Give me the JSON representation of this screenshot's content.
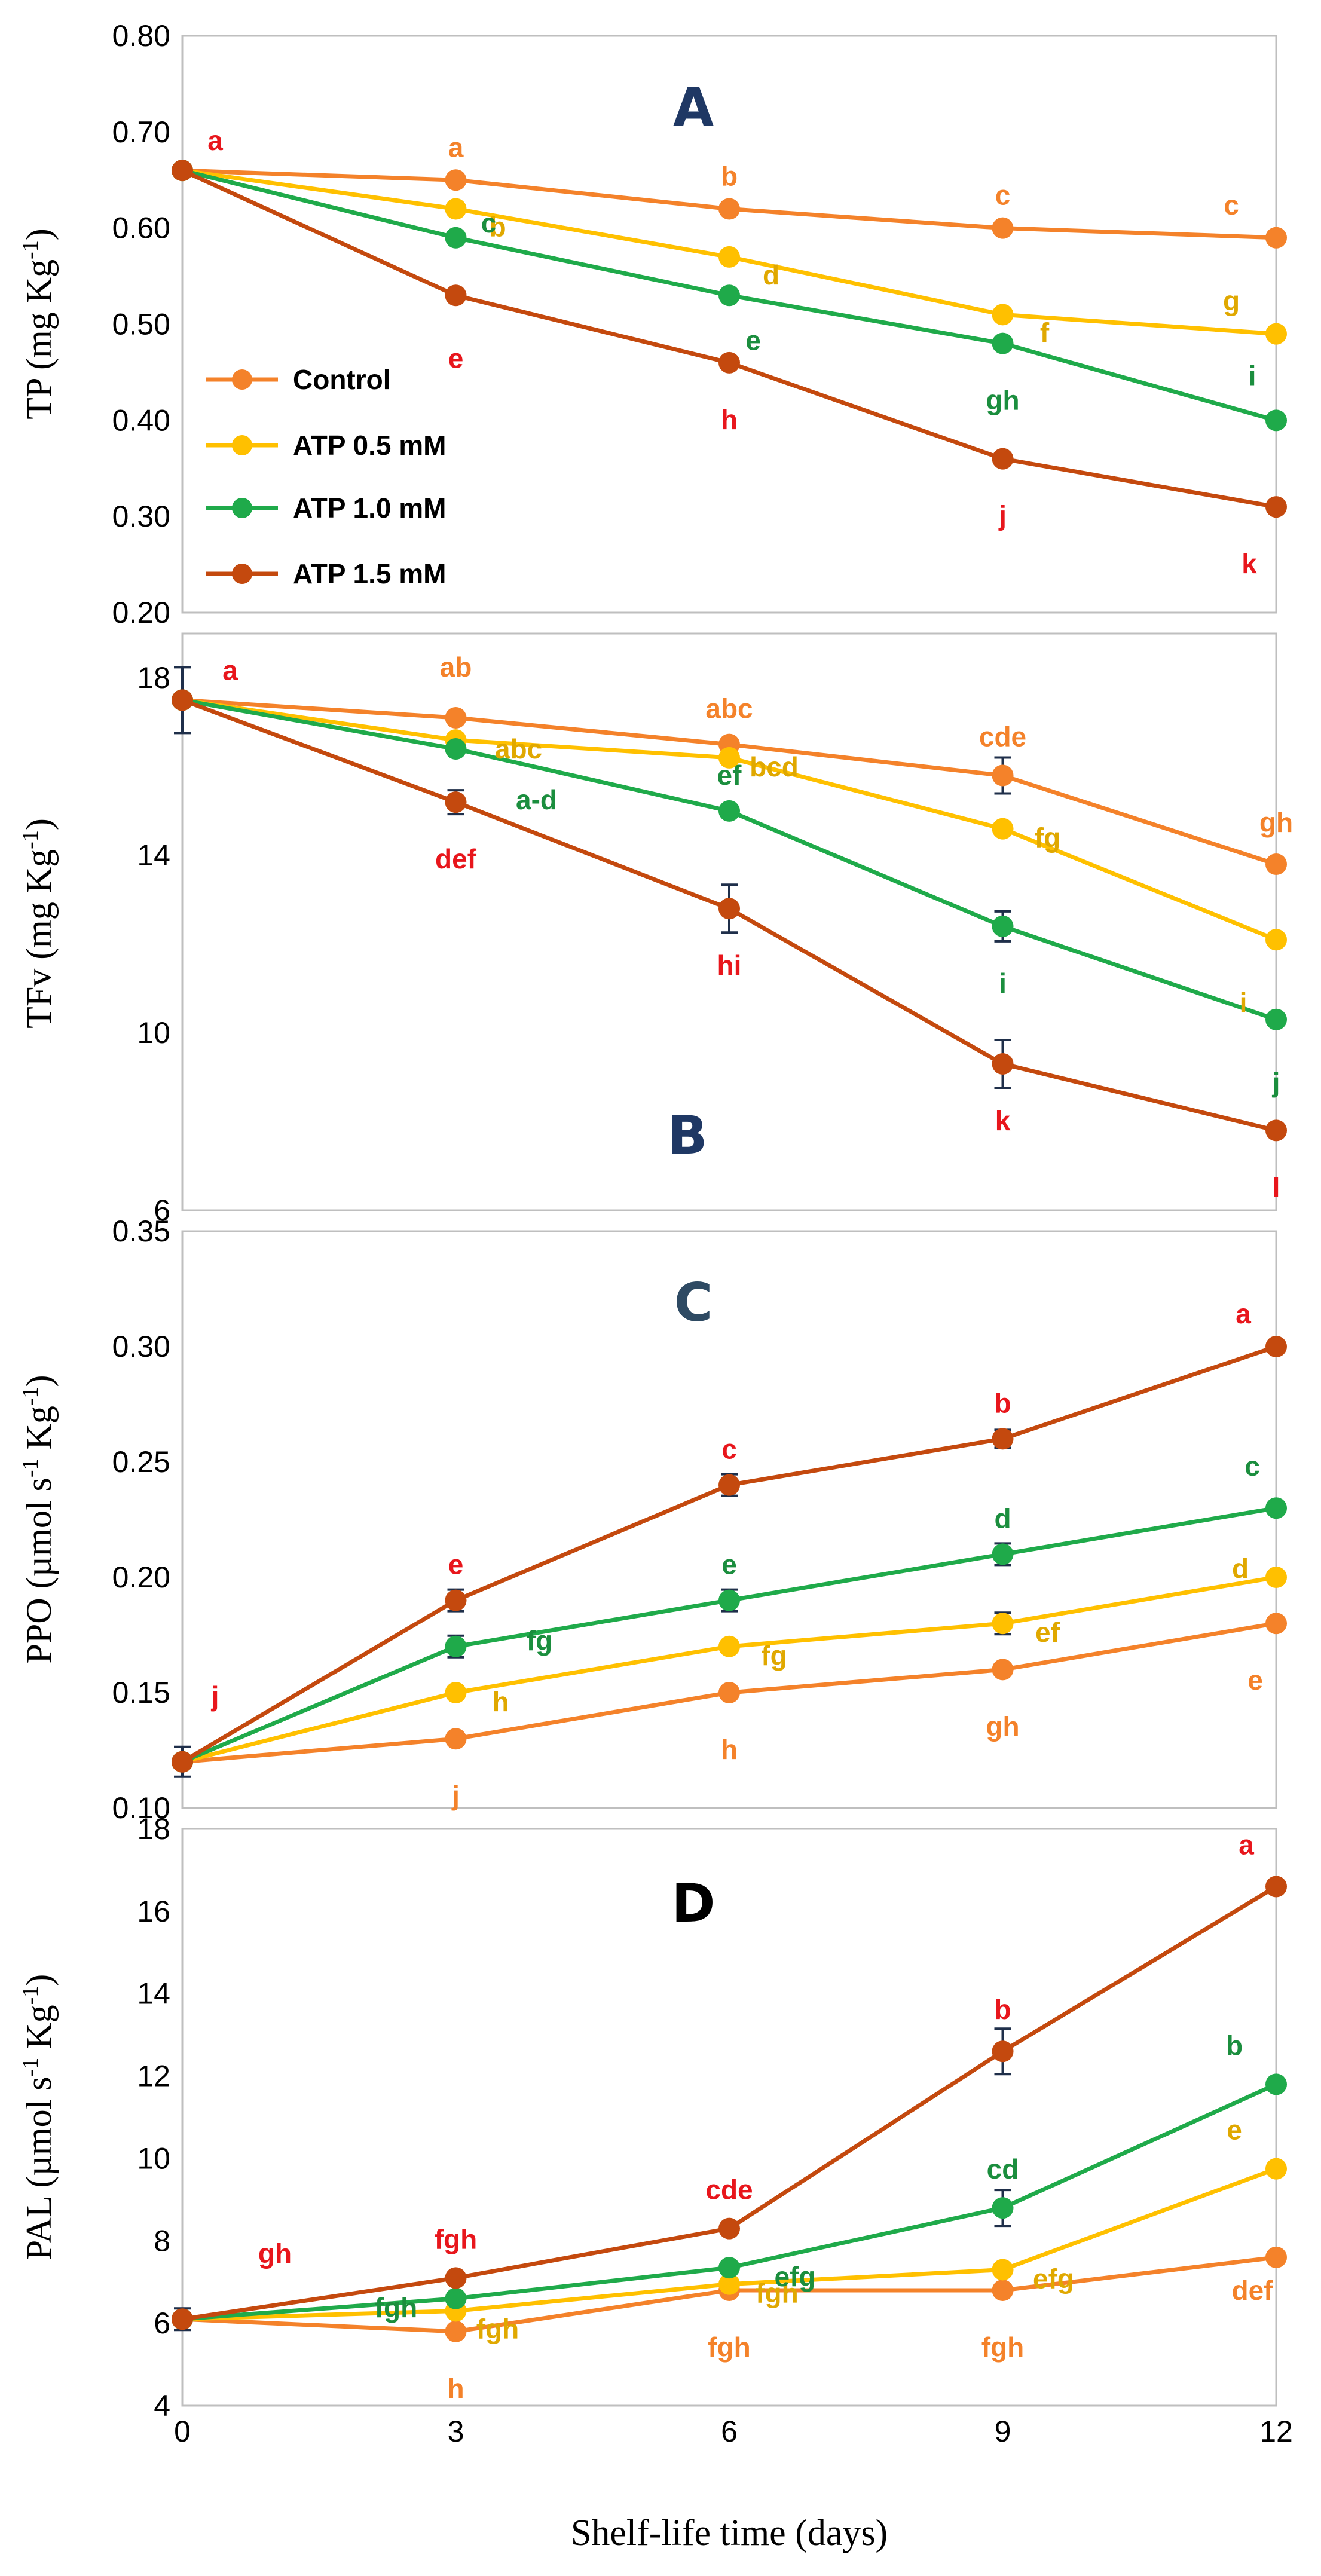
{
  "chart_data": {
    "type": "line",
    "x": [
      0,
      3,
      6,
      9,
      12
    ],
    "xlabel": "Shelf-life time (days)",
    "x_ticks": [
      "0",
      "3",
      "6",
      "9",
      "12"
    ],
    "colors": {
      "Control": "#F4822A",
      "ATP 0.5 mM": "#FFC000",
      "ATP 1.0 mM": "#1FAA4A",
      "ATP 1.5 mM": "#C4490E",
      "panel_label": "#1F3864",
      "letter_red": "#E8161C",
      "axis_box": "#BFBFBF",
      "error_bar": "#1F2F4A"
    },
    "legend": [
      "Control",
      "ATP 0.5 mM",
      "ATP 1.0 mM",
      "ATP 1.5 mM"
    ],
    "panels": [
      {
        "id": "A",
        "label": "A",
        "ylabel": "TP (mg Kg-1)",
        "ylabel_main": "TP (mg Kg",
        "ylabel_sup": "-1",
        "ylabel_end": ")",
        "ylim": [
          0.2,
          0.8
        ],
        "yticks": [
          "0.20",
          "0.30",
          "0.40",
          "0.50",
          "0.60",
          "0.70",
          "0.80"
        ],
        "series": [
          {
            "name": "Control",
            "values": [
              0.66,
              0.65,
              0.62,
              0.6,
              0.59
            ],
            "letters": [
              "",
              "a",
              "b",
              "c",
              "c"
            ]
          },
          {
            "name": "ATP 0.5 mM",
            "values": [
              0.66,
              0.62,
              0.57,
              0.51,
              0.49
            ],
            "letters": [
              "",
              "b",
              "d",
              "f",
              "g"
            ]
          },
          {
            "name": "ATP 1.0 mM",
            "values": [
              0.66,
              0.59,
              0.53,
              0.48,
              0.4
            ],
            "letters": [
              "",
              "c",
              "e",
              "gh",
              "i"
            ]
          },
          {
            "name": "ATP 1.5 mM",
            "values": [
              0.66,
              0.53,
              0.46,
              0.36,
              0.31
            ],
            "letters": [
              "a",
              "e",
              "h",
              "j",
              "k"
            ]
          }
        ]
      },
      {
        "id": "B",
        "label": "B",
        "ylabel": "TFv (mg Kg-1)",
        "ylabel_main": "TFv (mg Kg",
        "ylabel_sup": "-1",
        "ylabel_end": ")",
        "ylim": [
          6,
          19
        ],
        "yticks": [
          "6",
          "10",
          "14",
          "18"
        ],
        "series": [
          {
            "name": "Control",
            "values": [
              17.5,
              17.1,
              16.5,
              15.8,
              13.8
            ],
            "letters": [
              "",
              "ab",
              "abc",
              "cde",
              "gh"
            ]
          },
          {
            "name": "ATP 0.5 mM",
            "values": [
              17.5,
              16.6,
              16.2,
              14.6,
              12.1
            ],
            "letters": [
              "",
              "abc",
              "bcd",
              "fg",
              "i"
            ]
          },
          {
            "name": "ATP 1.0 mM",
            "values": [
              17.5,
              16.4,
              15.0,
              12.4,
              10.3
            ],
            "letters": [
              "",
              "a-d",
              "ef",
              "i",
              "j"
            ]
          },
          {
            "name": "ATP 1.5 mM",
            "values": [
              17.5,
              15.2,
              12.8,
              9.3,
              7.8
            ],
            "letters": [
              "a",
              "def",
              "hi",
              "k",
              "l"
            ]
          }
        ]
      },
      {
        "id": "C",
        "label": "C",
        "ylabel": "PPO (µmol s-1 Kg-1)",
        "ylabel_main": "PPO (µmol s",
        "ylabel_sup": "-1",
        "ylabel_mid": " Kg",
        "ylabel_sup2": "-1",
        "ylabel_end": ")",
        "ylim": [
          0.1,
          0.35
        ],
        "yticks": [
          "0.10",
          "0.15",
          "0.20",
          "0.25",
          "0.30",
          "0.35"
        ],
        "series": [
          {
            "name": "Control",
            "values": [
              0.12,
              0.13,
              0.15,
              0.16,
              0.18
            ],
            "letters": [
              "",
              "j",
              "h",
              "gh",
              "e"
            ]
          },
          {
            "name": "ATP 0.5 mM",
            "values": [
              0.12,
              0.15,
              0.17,
              0.18,
              0.2
            ],
            "letters": [
              "",
              "h",
              "fg",
              "ef",
              "d"
            ]
          },
          {
            "name": "ATP 1.0 mM",
            "values": [
              0.12,
              0.17,
              0.19,
              0.21,
              0.23
            ],
            "letters": [
              "",
              "fg",
              "e",
              "d",
              "c"
            ]
          },
          {
            "name": "ATP 1.5 mM",
            "values": [
              0.12,
              0.19,
              0.24,
              0.26,
              0.3
            ],
            "letters": [
              "j",
              "e",
              "c",
              "b",
              "a"
            ]
          }
        ]
      },
      {
        "id": "D",
        "label": "D",
        "ylabel": "PAL (µmol s-1 Kg-1)",
        "ylabel_main": "PAL (µmol s",
        "ylabel_sup": "-1",
        "ylabel_mid": " Kg",
        "ylabel_sup2": "-1",
        "ylabel_end": ")",
        "ylim": [
          4,
          18
        ],
        "yticks": [
          "4",
          "6",
          "8",
          "10",
          "12",
          "14",
          "16",
          "18"
        ],
        "series": [
          {
            "name": "Control",
            "values": [
              6.1,
              5.8,
              6.8,
              6.8,
              7.6
            ],
            "letters": [
              "",
              "h",
              "fgh",
              "fgh",
              "def"
            ]
          },
          {
            "name": "ATP 0.5 mM",
            "values": [
              6.1,
              6.3,
              6.95,
              7.3,
              9.75
            ],
            "letters": [
              "",
              "fgh",
              "fgh",
              "efg",
              "e"
            ]
          },
          {
            "name": "ATP 1.0 mM",
            "values": [
              6.1,
              6.6,
              7.35,
              8.8,
              11.8
            ],
            "letters": [
              "",
              "fgh",
              "efg",
              "cd",
              "b"
            ]
          },
          {
            "name": "ATP 1.5 mM",
            "values": [
              6.1,
              7.1,
              8.3,
              12.6,
              16.6
            ],
            "letters": [
              "gh",
              "fgh",
              "cde",
              "b",
              "a"
            ]
          }
        ]
      }
    ]
  }
}
